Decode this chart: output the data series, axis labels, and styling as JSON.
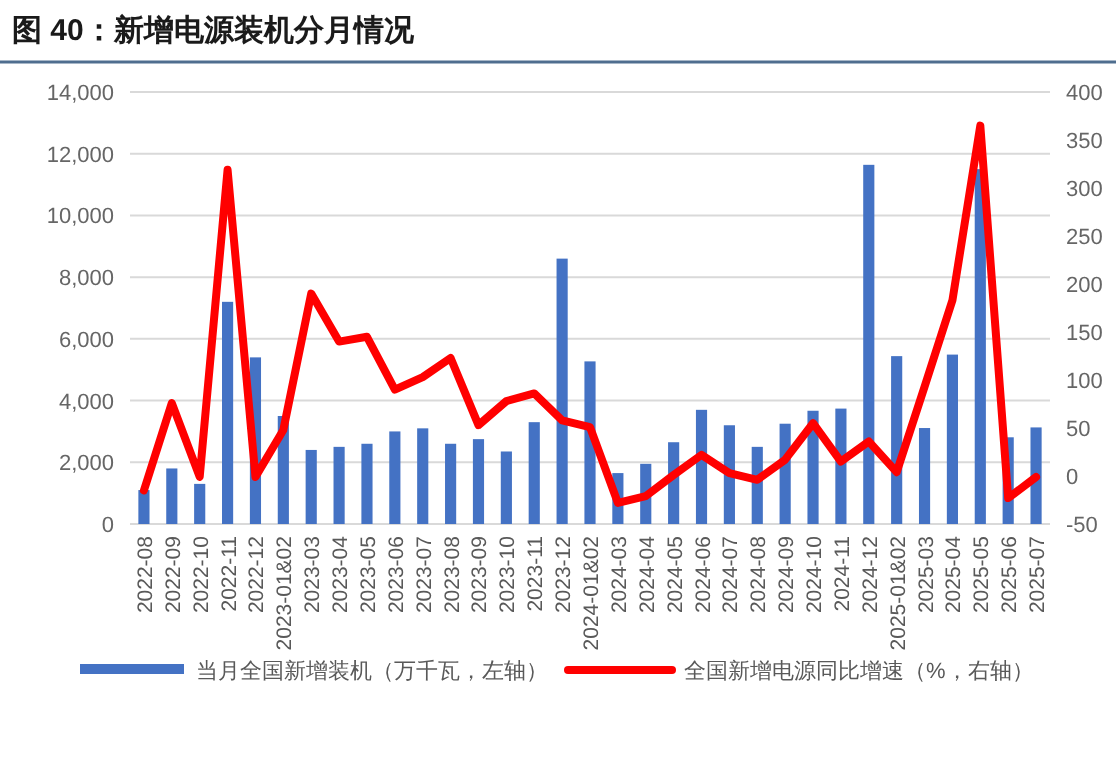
{
  "chart_data": {
    "type": "bar",
    "title": "图 40：新增电源装机分月情况",
    "categories": [
      "2022-08",
      "2022-09",
      "2022-10",
      "2022-11",
      "2022-12",
      "2023-01&02",
      "2023-03",
      "2023-04",
      "2023-05",
      "2023-06",
      "2023-07",
      "2023-08",
      "2023-09",
      "2023-10",
      "2023-11",
      "2023-12",
      "2024-01&02",
      "2024-03",
      "2024-04",
      "2024-05",
      "2024-06",
      "2024-07",
      "2024-08",
      "2024-09",
      "2024-10",
      "2024-11",
      "2024-12",
      "2025-01&02",
      "2025-03",
      "2025-04",
      "2025-05",
      "2025-06",
      "2025-07"
    ],
    "series": [
      {
        "name": "当月全国新增装机（万千瓦，左轴）",
        "color": "#4472c4",
        "values": [
          1100,
          1800,
          1300,
          7200,
          5400,
          3500,
          2400,
          2500,
          2600,
          3000,
          3100,
          2600,
          2750,
          2350,
          3300,
          8600,
          5270,
          1650,
          1950,
          2650,
          3700,
          3200,
          2500,
          3250,
          3670,
          3740,
          11640,
          5440,
          3110,
          5490,
          11500,
          2810,
          3130
        ]
      },
      {
        "name": "全国新增电源同比增速（%，右轴）",
        "type": "line",
        "axis": "y2",
        "color": "#ff0000",
        "values": [
          -15,
          76,
          -1,
          319,
          -1,
          48,
          190,
          140,
          145,
          90,
          103,
          123,
          53,
          78,
          86,
          58,
          51,
          -28,
          -21,
          1,
          22,
          3,
          -4,
          17,
          55,
          15,
          36,
          4,
          93,
          183,
          365,
          -23,
          -1
        ]
      }
    ],
    "ylim": [
      0,
      14000
    ],
    "yticks": [
      0,
      {
        "value": 2000,
        "label": "2,000"
      },
      {
        "value": 4000,
        "label": "4,000"
      },
      {
        "value": 6000,
        "label": "6,000"
      },
      {
        "value": 8000,
        "label": "8,000"
      },
      {
        "value": 10000,
        "label": "10,000"
      },
      {
        "value": 12000,
        "label": "12,000"
      },
      {
        "value": 14000,
        "label": "14,000"
      }
    ],
    "y2lim": [
      -50,
      400
    ],
    "y2ticks": [
      -50,
      0,
      50,
      100,
      150,
      200,
      250,
      300,
      350,
      400
    ],
    "grid": "y",
    "legend": "bottom",
    "marker": "none",
    "line_style": "solid"
  }
}
